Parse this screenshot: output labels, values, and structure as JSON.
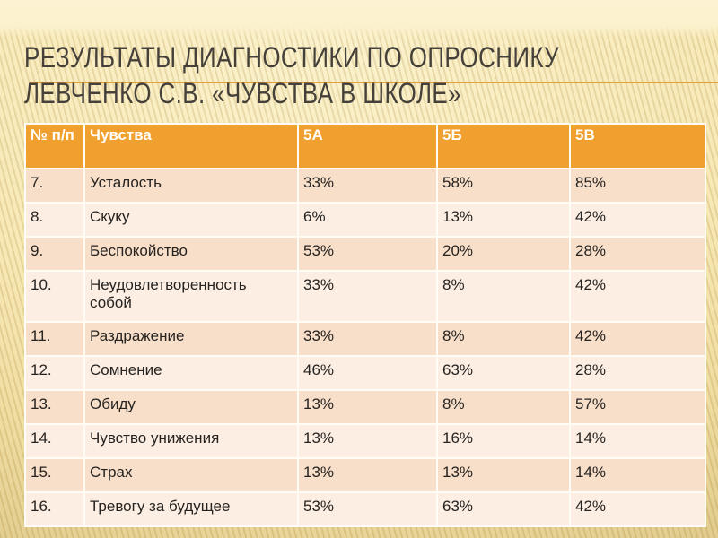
{
  "slide": {
    "title": {
      "line1": "РЕЗУЛЬТАТЫ ДИАГНОСТИКИ ПО ОПРОСНИКУ",
      "line2": "ЛЕВЧЕНКО С.В. «ЧУВСТВА В ШКОЛЕ»"
    },
    "colors": {
      "header_bg": "#EFA02F",
      "row_odd_bg": "#F8DFC9",
      "row_even_bg": "#FCEEE3",
      "cell_separator": "#FEFCF4",
      "accent_line": "#E2A23B",
      "title_text": "#45403A",
      "body_text": "#262321",
      "background_center": "#F7E7B2",
      "background_edge": "#D2B976",
      "top_band": "#FCF3D2"
    }
  },
  "table": {
    "headers": [
      "№ п/п",
      "Чувства",
      "5А",
      "5Б",
      "5В"
    ],
    "rows": [
      [
        "7.",
        "Усталость",
        "33%",
        "58%",
        "85%"
      ],
      [
        "8.",
        "Скуку",
        "6%",
        "13%",
        "42%"
      ],
      [
        "9.",
        "Беспокойство",
        "53%",
        "20%",
        "28%"
      ],
      [
        "10.",
        "Неудовлетворенность собой",
        "33%",
        "8%",
        "42%"
      ],
      [
        "11.",
        "Раздражение",
        "33%",
        "8%",
        "42%"
      ],
      [
        "12.",
        "Сомнение",
        "46%",
        "63%",
        "28%"
      ],
      [
        "13.",
        "Обиду",
        "13%",
        "8%",
        "57%"
      ],
      [
        "14.",
        "Чувство унижения",
        "13%",
        "16%",
        "14%"
      ],
      [
        "15.",
        "Страх",
        "13%",
        "13%",
        "14%"
      ],
      [
        "16.",
        "Тревогу за будущее",
        "53%",
        "63%",
        "42%"
      ]
    ]
  }
}
